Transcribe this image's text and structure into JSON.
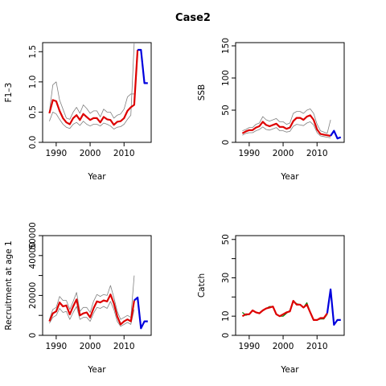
{
  "title": "Case2",
  "chart_data": [
    {
      "type": "line",
      "ylabel": "F1–3",
      "xlabel": "Year",
      "xlim": [
        1986,
        2018
      ],
      "ylim": [
        0,
        1.65
      ],
      "xticks": [
        1990,
        2000,
        2010
      ],
      "yticks": [
        0.0,
        0.5,
        1.0,
        1.5
      ],
      "ytick_labels": [
        "0.0",
        "0.5",
        "1.0",
        "1.5"
      ],
      "grid": false,
      "series": [
        {
          "role": "upper",
          "color": "#808080",
          "x": [
            1988,
            1989,
            1990,
            1991,
            1992,
            1993,
            1994,
            1995,
            1996,
            1997,
            1998,
            1999,
            2000,
            2001,
            2002,
            2003,
            2004,
            2005,
            2006,
            2007,
            2008,
            2009,
            2010,
            2011,
            2012,
            2013
          ],
          "y": [
            0.5,
            0.95,
            1.0,
            0.7,
            0.55,
            0.4,
            0.38,
            0.5,
            0.58,
            0.48,
            0.62,
            0.56,
            0.48,
            0.52,
            0.52,
            0.42,
            0.55,
            0.5,
            0.5,
            0.4,
            0.45,
            0.47,
            0.55,
            0.75,
            0.8,
            0.8
          ]
        },
        {
          "role": "lower",
          "color": "#808080",
          "x": [
            1988,
            1989,
            1990,
            1991,
            1992,
            1993,
            1994,
            1995,
            1996,
            1997,
            1998,
            1999,
            2000,
            2001,
            2002,
            2003,
            2004,
            2005,
            2006,
            2007,
            2008,
            2009,
            2010,
            2011,
            2012,
            2013
          ],
          "y": [
            0.35,
            0.5,
            0.47,
            0.38,
            0.3,
            0.25,
            0.23,
            0.3,
            0.33,
            0.28,
            0.35,
            0.3,
            0.27,
            0.3,
            0.3,
            0.27,
            0.32,
            0.3,
            0.27,
            0.22,
            0.25,
            0.26,
            0.3,
            0.38,
            0.45,
            1.65
          ]
        },
        {
          "role": "estimate",
          "color": "#dd0000",
          "x": [
            1988,
            1989,
            1990,
            1991,
            1992,
            1993,
            1994,
            1995,
            1996,
            1997,
            1998,
            1999,
            2000,
            2001,
            2002,
            2003,
            2004,
            2005,
            2006,
            2007,
            2008,
            2009,
            2010,
            2011,
            2012,
            2013,
            2014
          ],
          "y": [
            0.48,
            0.7,
            0.68,
            0.52,
            0.4,
            0.33,
            0.3,
            0.4,
            0.45,
            0.37,
            0.47,
            0.42,
            0.37,
            0.4,
            0.4,
            0.33,
            0.42,
            0.38,
            0.37,
            0.29,
            0.34,
            0.35,
            0.4,
            0.52,
            0.58,
            0.62,
            1.53
          ]
        },
        {
          "role": "projection",
          "color": "#0000dd",
          "x": [
            2014,
            2015,
            2016,
            2017
          ],
          "y": [
            1.53,
            1.53,
            0.98,
            0.98
          ]
        }
      ]
    },
    {
      "type": "line",
      "ylabel": "SSB",
      "xlabel": "Year",
      "xlim": [
        1986,
        2018
      ],
      "ylim": [
        0,
        155
      ],
      "xticks": [
        1990,
        2000,
        2010
      ],
      "yticks": [
        0,
        50,
        100,
        150
      ],
      "ytick_labels": [
        "0",
        "50",
        "100",
        "150"
      ],
      "grid": false,
      "series": [
        {
          "role": "upper",
          "color": "#808080",
          "x": [
            1988,
            1989,
            1990,
            1991,
            1992,
            1993,
            1994,
            1995,
            1996,
            1997,
            1998,
            1999,
            2000,
            2001,
            2002,
            2003,
            2004,
            2005,
            2006,
            2007,
            2008,
            2009,
            2010,
            2011,
            2012,
            2013,
            2014
          ],
          "y": [
            18,
            20,
            23,
            23,
            28,
            30,
            40,
            35,
            33,
            35,
            37,
            32,
            32,
            28,
            30,
            45,
            48,
            48,
            45,
            50,
            52,
            45,
            28,
            18,
            16,
            14,
            35
          ]
        },
        {
          "role": "lower",
          "color": "#808080",
          "x": [
            1988,
            1989,
            1990,
            1991,
            1992,
            1993,
            1994,
            1995,
            1996,
            1997,
            1998,
            1999,
            2000,
            2001,
            2002,
            2003,
            2004,
            2005,
            2006,
            2007,
            2008,
            2009,
            2010,
            2011,
            2012,
            2013,
            2014
          ],
          "y": [
            11,
            14,
            15,
            15,
            18,
            20,
            24,
            20,
            19,
            21,
            23,
            18,
            18,
            16,
            17,
            25,
            28,
            27,
            26,
            30,
            32,
            27,
            15,
            10,
            9,
            8,
            7
          ]
        },
        {
          "role": "estimate",
          "color": "#dd0000",
          "x": [
            1988,
            1989,
            1990,
            1991,
            1992,
            1993,
            1994,
            1995,
            1996,
            1997,
            1998,
            1999,
            2000,
            2001,
            2002,
            2003,
            2004,
            2005,
            2006,
            2007,
            2008,
            2009,
            2010,
            2011,
            2012,
            2013,
            2014
          ],
          "y": [
            14,
            17,
            19,
            19,
            23,
            25,
            32,
            27,
            25,
            27,
            29,
            24,
            24,
            21,
            23,
            33,
            38,
            38,
            35,
            40,
            42,
            35,
            20,
            13,
            12,
            11,
            10
          ]
        },
        {
          "role": "projection",
          "color": "#0000dd",
          "x": [
            2014,
            2015,
            2016,
            2017
          ],
          "y": [
            10,
            18,
            6,
            8
          ]
        }
      ]
    },
    {
      "type": "line",
      "ylabel": "Recruitment at age 1",
      "xlabel": "Year",
      "xlim": [
        1986,
        2018
      ],
      "ylim": [
        0,
        50000
      ],
      "xticks": [
        1990,
        2000,
        2010
      ],
      "yticks": [
        0,
        10000,
        20000,
        30000,
        40000,
        50000
      ],
      "ytick_labels": [
        "0",
        "",
        "20000",
        "",
        "40000",
        "50000"
      ],
      "grid": false,
      "series": [
        {
          "role": "upper",
          "color": "#808080",
          "x": [
            1988,
            1989,
            1990,
            1991,
            1992,
            1993,
            1994,
            1995,
            1996,
            1997,
            1998,
            1999,
            2000,
            2001,
            2002,
            2003,
            2004,
            2005,
            2006,
            2007,
            2008,
            2009,
            2010,
            2011,
            2012,
            2013
          ],
          "y": [
            8000,
            13000,
            14000,
            19500,
            17500,
            17500,
            13000,
            17000,
            21500,
            12000,
            14000,
            14000,
            11500,
            17000,
            20500,
            19500,
            20500,
            20000,
            25000,
            19000,
            12000,
            8000,
            9000,
            10000,
            9000,
            30000
          ]
        },
        {
          "role": "lower",
          "color": "#808080",
          "x": [
            1988,
            1989,
            1990,
            1991,
            1992,
            1993,
            1994,
            1995,
            1996,
            1997,
            1998,
            1999,
            2000,
            2001,
            2002,
            2003,
            2004,
            2005,
            2006,
            2007,
            2008,
            2009,
            2010,
            2011,
            2012,
            2013
          ],
          "y": [
            6000,
            9000,
            10000,
            13500,
            11500,
            12000,
            8000,
            11500,
            14500,
            8000,
            9000,
            9000,
            7000,
            11000,
            14000,
            13500,
            14500,
            13500,
            17000,
            13000,
            7000,
            4500,
            5500,
            6500,
            5500,
            13000
          ]
        },
        {
          "role": "estimate",
          "color": "#dd0000",
          "x": [
            1988,
            1989,
            1990,
            1991,
            1992,
            1993,
            1994,
            1995,
            1996,
            1997,
            1998,
            1999,
            2000,
            2001,
            2002,
            2003,
            2004,
            2005,
            2006,
            2007,
            2008,
            2009,
            2010,
            2011,
            2012,
            2013
          ],
          "y": [
            7000,
            11000,
            12000,
            16500,
            14500,
            15000,
            10500,
            14500,
            18000,
            10000,
            11000,
            11500,
            9000,
            13500,
            17000,
            16500,
            17500,
            17000,
            20500,
            16000,
            9500,
            5500,
            7000,
            8000,
            7000,
            17500
          ]
        },
        {
          "role": "projection",
          "color": "#0000dd",
          "x": [
            2013,
            2014,
            2015,
            2016,
            2017
          ],
          "y": [
            17500,
            19000,
            3500,
            7000,
            7000
          ]
        }
      ]
    },
    {
      "type": "line",
      "ylabel": "Catch",
      "xlabel": "Year",
      "xlim": [
        1986,
        2018
      ],
      "ylim": [
        0,
        52
      ],
      "xticks": [
        1990,
        2000,
        2010
      ],
      "yticks": [
        0,
        10,
        20,
        30,
        40,
        50
      ],
      "ytick_labels": [
        "0",
        "10",
        "",
        "30",
        "",
        "50"
      ],
      "grid": false,
      "series": [
        {
          "role": "observed",
          "color": "#008000",
          "x": [
            1988,
            1989,
            1990,
            1991,
            1992,
            1993,
            1994,
            1995,
            1996,
            1997,
            1998,
            1999,
            2000,
            2001,
            2002,
            2003,
            2004,
            2005,
            2006,
            2007,
            2008,
            2009,
            2010,
            2011,
            2012,
            2013
          ],
          "y": [
            12,
            10.5,
            11,
            13,
            12,
            11.5,
            13,
            14,
            15,
            15,
            11,
            10,
            10,
            11.5,
            13,
            18,
            16.5,
            16,
            14.5,
            17,
            12,
            8,
            8,
            8.5,
            8.5,
            11
          ]
        },
        {
          "role": "estimate",
          "color": "#dd0000",
          "x": [
            1988,
            1989,
            1990,
            1991,
            1992,
            1993,
            1994,
            1995,
            1996,
            1997,
            1998,
            1999,
            2000,
            2001,
            2002,
            2003,
            2004,
            2005,
            2006,
            2007,
            2008,
            2009,
            2010,
            2011,
            2012,
            2013
          ],
          "y": [
            10,
            11,
            11,
            13,
            12,
            11.5,
            13,
            14,
            14.5,
            15,
            11,
            10,
            11,
            12,
            12.5,
            18,
            16,
            16,
            14.5,
            16,
            12,
            8,
            8,
            9,
            9,
            11.5
          ]
        },
        {
          "role": "projection",
          "color": "#0000dd",
          "x": [
            2013,
            2014,
            2015,
            2016,
            2017
          ],
          "y": [
            11.5,
            24,
            5.5,
            8,
            8
          ]
        }
      ]
    }
  ]
}
